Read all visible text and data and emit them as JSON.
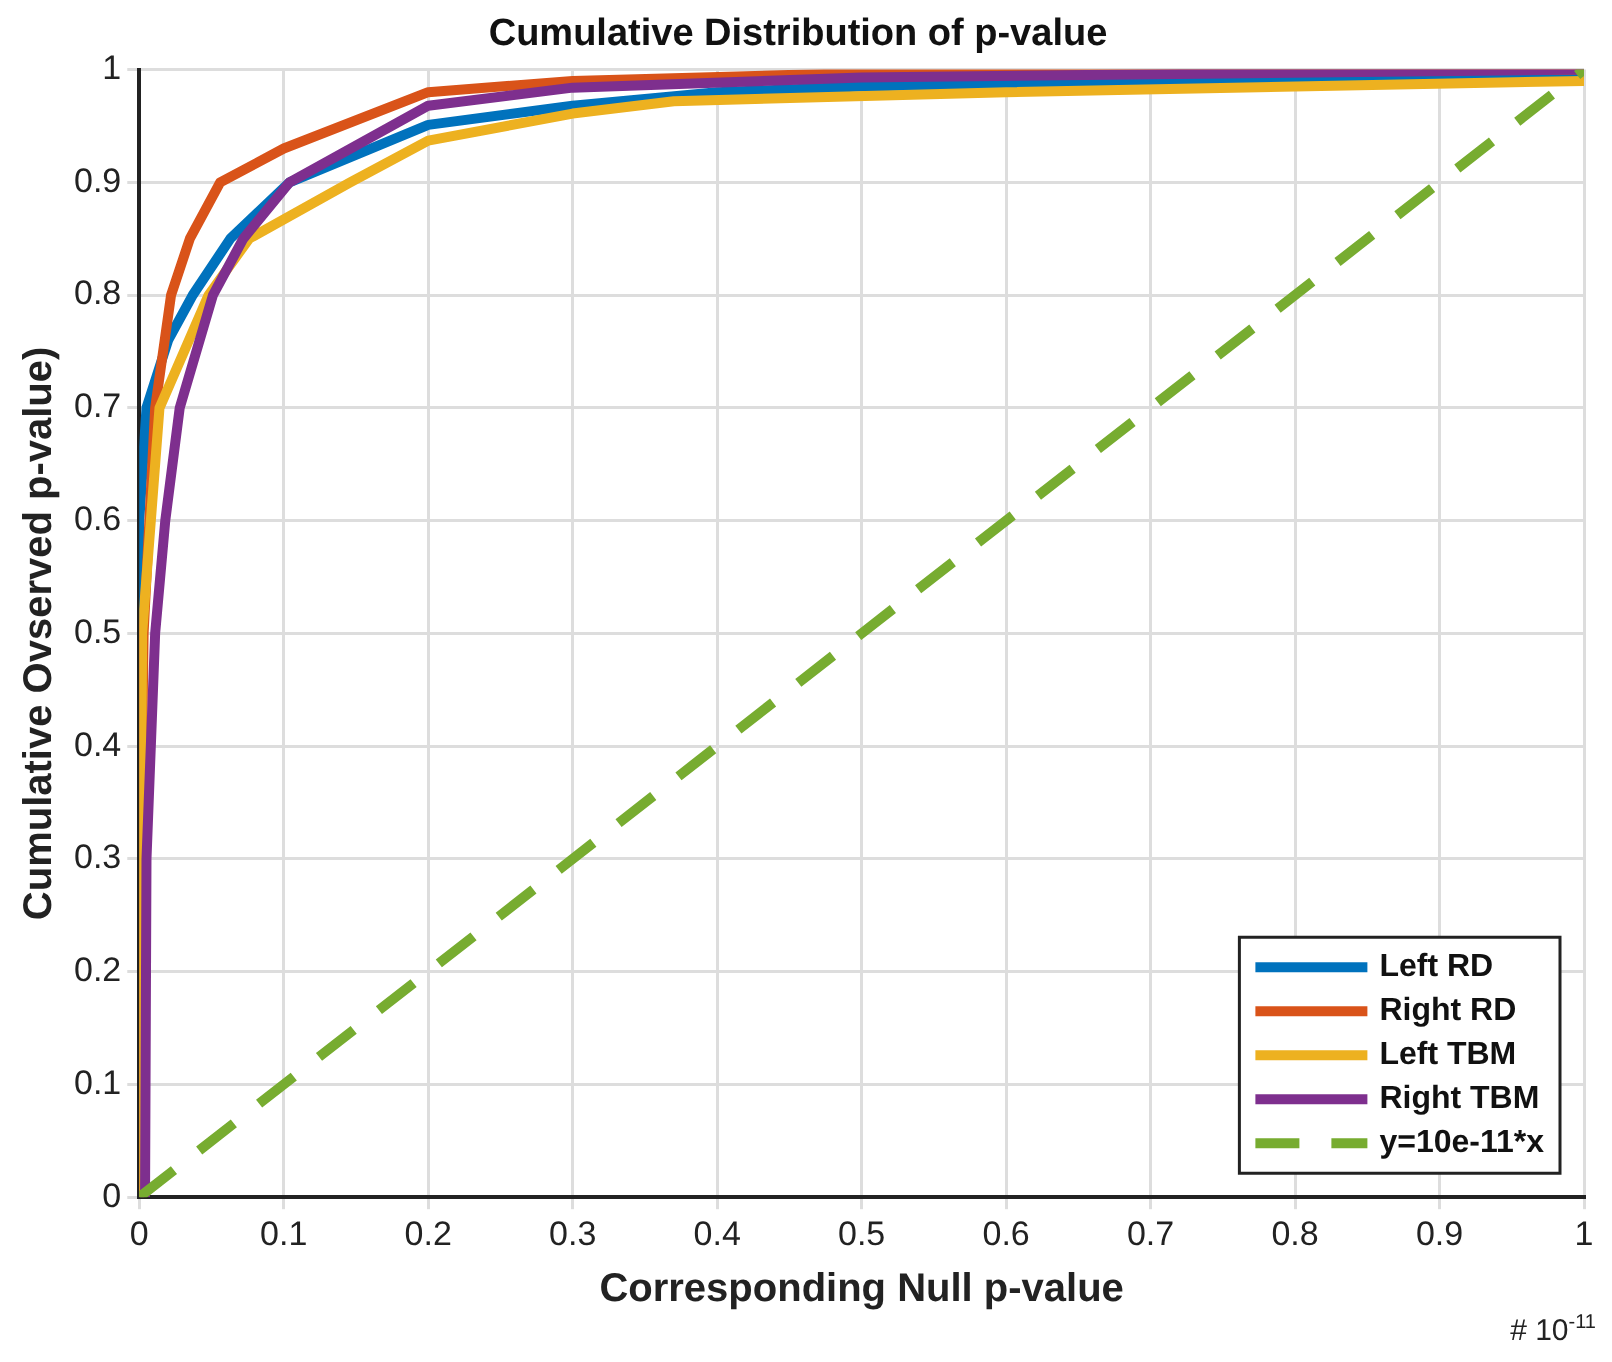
{
  "chart_data": {
    "type": "line",
    "title": "Cumulative Distribution of p-value",
    "xlabel": "Corresponding Null p-value",
    "ylabel": "Cumulative Ovserved p-value)",
    "annotations": [
      "# 10$^{-11}$"
    ],
    "xlim": [
      0,
      1
    ],
    "ylim": [
      0,
      1
    ],
    "xticks": [
      0,
      0.1,
      0.2,
      0.3,
      0.4,
      0.5,
      0.6,
      0.7,
      0.8,
      0.9,
      1
    ],
    "yticks": [
      0,
      0.1,
      0.2,
      0.3,
      0.4,
      0.5,
      0.6,
      0.7,
      0.8,
      0.9,
      1
    ],
    "grid": true,
    "legend": "bottom right",
    "marker": "none",
    "series": [
      {
        "name": "Left RD",
        "color": "#0072bd",
        "x": [
          0,
          0,
          0.005,
          0.02,
          0.037,
          0.063,
          0.104,
          0.2,
          0.3,
          0.4,
          0.5,
          0.7,
          1
        ],
        "values": [
          0,
          0.6,
          0.7,
          0.76,
          0.8,
          0.85,
          0.9,
          0.951,
          0.968,
          0.98,
          0.985,
          0.99,
          0.995
        ]
      },
      {
        "name": "Right RD",
        "color": "#d95319",
        "x": [
          0,
          0.001,
          0.003,
          0.011,
          0.022,
          0.035,
          0.056,
          0.1,
          0.2,
          0.3,
          0.5,
          1
        ],
        "values": [
          0,
          0.3,
          0.5,
          0.7,
          0.8,
          0.85,
          0.9,
          0.93,
          0.98,
          0.99,
          0.997,
          1
        ]
      },
      {
        "name": "Left TBM",
        "color": "#edb120",
        "x": [
          0,
          0.001,
          0.002,
          0.014,
          0.048,
          0.076,
          0.146,
          0.2,
          0.3,
          0.37,
          0.6,
          1
        ],
        "values": [
          0,
          0.3,
          0.5,
          0.7,
          0.8,
          0.85,
          0.9,
          0.937,
          0.961,
          0.972,
          0.98,
          0.99
        ]
      },
      {
        "name": "Right TBM",
        "color": "#7e2f8e",
        "x": [
          0.004,
          0.005,
          0.011,
          0.018,
          0.028,
          0.051,
          0.072,
          0.104,
          0.2,
          0.3,
          0.5,
          1
        ],
        "values": [
          0,
          0.3,
          0.5,
          0.6,
          0.7,
          0.8,
          0.85,
          0.9,
          0.968,
          0.984,
          0.993,
          1
        ]
      },
      {
        "name": "y=10e-11*x",
        "color": "#77ac30",
        "line_style": "dashed",
        "x": [
          0,
          1
        ],
        "values": [
          0,
          1
        ]
      }
    ]
  }
}
